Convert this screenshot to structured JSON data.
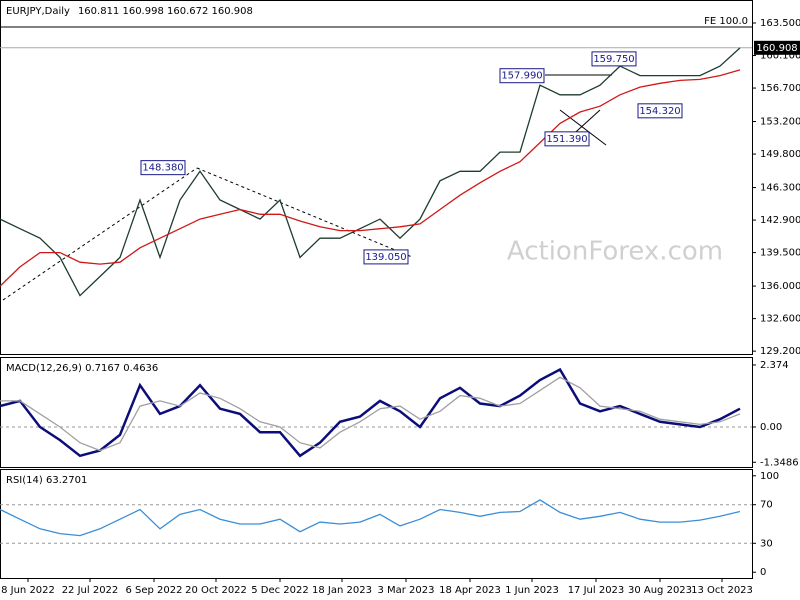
{
  "chart_data": [
    {
      "type": "line",
      "title": "EURJPY,Daily",
      "subtitle": "160.811 160.998 160.672 160.908",
      "watermark": "ActionForex.com",
      "ylim": [
        128.9,
        165.8
      ],
      "xlim": [
        0,
        376
      ],
      "yticks": [
        {
          "value": 163.5,
          "label": "163.500"
        },
        {
          "value": 160.1,
          "label": "160.100"
        },
        {
          "value": 156.7,
          "label": "156.700"
        },
        {
          "value": 153.2,
          "label": "153.200"
        },
        {
          "value": 149.8,
          "label": "149.800"
        },
        {
          "value": 146.3,
          "label": "146.300"
        },
        {
          "value": 142.9,
          "label": "142.900"
        },
        {
          "value": 139.5,
          "label": "139.500"
        },
        {
          "value": 136.0,
          "label": "136.000"
        },
        {
          "value": 132.6,
          "label": "132.600"
        },
        {
          "value": 129.2,
          "label": "129.200"
        }
      ],
      "current_price": {
        "value": 160.908,
        "label": "160.908"
      },
      "fe_level": {
        "value": 163.08,
        "label": "FE 100.0"
      },
      "x": [
        0,
        10,
        20,
        30,
        40,
        50,
        60,
        70,
        80,
        90,
        100,
        110,
        120,
        130,
        140,
        150,
        160,
        170,
        180,
        190,
        200,
        210,
        220,
        230,
        240,
        250,
        260,
        270,
        280,
        290,
        300,
        310,
        320,
        330,
        340,
        350,
        360,
        370
      ],
      "series": [
        {
          "color": "#1e3d2c",
          "values": [
            143,
            142,
            141,
            139,
            135,
            137,
            139,
            145,
            139,
            145,
            148,
            145,
            144,
            143,
            145,
            139,
            141,
            141,
            142,
            143,
            141,
            143,
            147,
            148,
            148,
            150,
            150,
            157,
            156,
            156,
            157,
            159,
            158,
            158,
            158,
            158,
            159,
            160.9
          ]
        },
        {
          "color": "#d01818",
          "values": [
            136,
            138,
            139.5,
            139.5,
            138.5,
            138.3,
            138.5,
            140,
            141,
            142,
            143,
            143.5,
            144,
            143.5,
            143.5,
            142.8,
            142.2,
            141.8,
            141.8,
            142,
            142.2,
            142.5,
            144,
            145.5,
            146.8,
            148,
            149,
            151,
            153,
            154.2,
            154.8,
            156,
            156.8,
            157.2,
            157.5,
            157.6,
            158,
            158.6
          ]
        }
      ],
      "annotations": [
        {
          "x": 81.5,
          "value": 148.38,
          "label": "148.380"
        },
        {
          "x": 193,
          "value": 139.05,
          "label": "139.050"
        },
        {
          "x": 261,
          "value": 157.99,
          "label": "157.990"
        },
        {
          "x": 307,
          "value": 159.75,
          "label": "159.750"
        },
        {
          "x": 283.5,
          "value": 151.39,
          "label": "151.390"
        },
        {
          "x": 330,
          "value": 154.32,
          "label": "154.320"
        }
      ]
    },
    {
      "type": "line",
      "title": "MACD(12,26,9) 0.7167 0.4636",
      "ylim": [
        -1.53,
        2.64
      ],
      "xlim": [
        0,
        376
      ],
      "yticks": [
        2.374,
        {
          "value": 0,
          "label": "0.00"
        },
        -1.3486
      ],
      "ref_lines": [
        0
      ],
      "x": [
        0,
        10,
        20,
        30,
        40,
        50,
        60,
        70,
        80,
        90,
        100,
        110,
        120,
        130,
        140,
        150,
        160,
        170,
        180,
        190,
        200,
        210,
        220,
        230,
        240,
        250,
        260,
        270,
        280,
        290,
        300,
        310,
        320,
        330,
        340,
        350,
        360,
        370
      ],
      "series": [
        {
          "color": "#0c0c7a",
          "values": [
            0.8,
            1.0,
            0.0,
            -0.5,
            -1.1,
            -0.9,
            -0.3,
            1.6,
            0.5,
            0.8,
            1.6,
            0.7,
            0.5,
            -0.2,
            -0.2,
            -1.1,
            -0.6,
            0.2,
            0.4,
            1.0,
            0.6,
            0.0,
            1.1,
            1.5,
            0.9,
            0.8,
            1.2,
            1.8,
            2.2,
            0.9,
            0.6,
            0.8,
            0.5,
            0.2,
            0.1,
            0.0,
            0.3,
            0.7
          ]
        },
        {
          "color": "#a0a0a0",
          "values": [
            1.0,
            1.0,
            0.5,
            0.0,
            -0.6,
            -0.9,
            -0.6,
            0.8,
            1.0,
            0.8,
            1.3,
            1.1,
            0.7,
            0.2,
            0.0,
            -0.6,
            -0.8,
            -0.2,
            0.2,
            0.7,
            0.8,
            0.3,
            0.6,
            1.2,
            1.1,
            0.8,
            0.9,
            1.4,
            1.9,
            1.5,
            0.8,
            0.7,
            0.6,
            0.3,
            0.2,
            0.1,
            0.2,
            0.5
          ]
        }
      ]
    },
    {
      "type": "line",
      "title": "RSI(14) 63.2701",
      "ylim": [
        -6,
        106
      ],
      "xlim": [
        0,
        376
      ],
      "yticks": [
        100,
        70,
        30,
        0
      ],
      "ref_lines": [
        70,
        30
      ],
      "xticks": [
        {
          "value": 14,
          "label": "8 Jun 2022"
        },
        {
          "value": 45,
          "label": "22 Jul 2022"
        },
        {
          "value": 77,
          "label": "6 Sep 2022"
        },
        {
          "value": 108,
          "label": "20 Oct 2022"
        },
        {
          "value": 140,
          "label": "5 Dec 2022"
        },
        {
          "value": 171,
          "label": "18 Jan 2023"
        },
        {
          "value": 203,
          "label": "3 Mar 2023"
        },
        {
          "value": 235,
          "label": "18 Apr 2023"
        },
        {
          "value": 266,
          "label": "1 Jun 2023"
        },
        {
          "value": 298,
          "label": "17 Jul 2023"
        },
        {
          "value": 330,
          "label": "30 Aug 2023"
        },
        {
          "value": 361,
          "label": "13 Oct 2023"
        }
      ],
      "x": [
        0,
        10,
        20,
        30,
        40,
        50,
        60,
        70,
        80,
        90,
        100,
        110,
        120,
        130,
        140,
        150,
        160,
        170,
        180,
        190,
        200,
        210,
        220,
        230,
        240,
        250,
        260,
        270,
        280,
        290,
        300,
        310,
        320,
        330,
        340,
        350,
        360,
        370
      ],
      "series": [
        {
          "color": "#3a8ed8",
          "values": [
            65,
            55,
            45,
            40,
            38,
            45,
            55,
            65,
            45,
            60,
            65,
            55,
            50,
            50,
            55,
            42,
            52,
            50,
            52,
            60,
            48,
            55,
            65,
            62,
            58,
            62,
            63,
            75,
            62,
            55,
            58,
            62,
            55,
            52,
            52,
            54,
            58,
            63
          ]
        }
      ]
    }
  ]
}
